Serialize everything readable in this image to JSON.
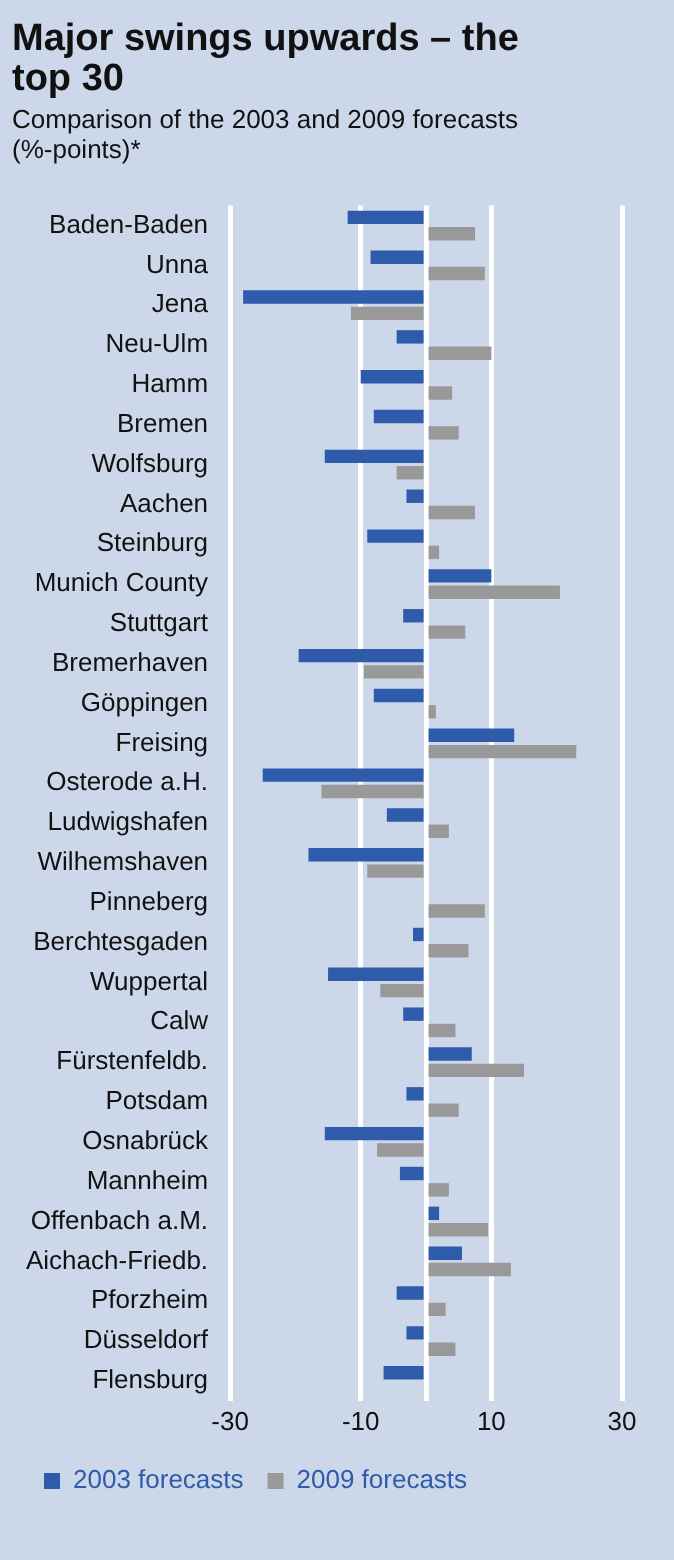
{
  "chart_data": {
    "type": "bar",
    "orientation": "horizontal",
    "title": "Major swings upwards – the top 30",
    "subtitle": "Comparison of the 2003 and 2009 forecasts (%-points)*",
    "categories": [
      "Baden-Baden",
      "Unna",
      "Jena",
      "Neu-Ulm",
      "Hamm",
      "Bremen",
      "Wolfsburg",
      "Aachen",
      "Steinburg",
      "Munich County",
      "Stuttgart",
      "Bremerhaven",
      "Göppingen",
      "Freising",
      "Osterode a.H.",
      "Ludwigshafen",
      "Wilhemshaven",
      "Pinneberg",
      "Berchtesgaden",
      "Wuppertal",
      "Calw",
      "Fürstenfeldb.",
      "Potsdam",
      "Osnabrück",
      "Mannheim",
      "Offenbach a.M.",
      "Aichach-Friedb.",
      "Pforzheim",
      "Düsseldorf",
      "Flensburg"
    ],
    "series": [
      {
        "name": "2003 forecasts",
        "color": "#2e5caa",
        "values": [
          -12,
          -8.5,
          -28,
          -4.5,
          -10,
          -8,
          -15.5,
          -3,
          -9,
          10,
          -3.5,
          -19.5,
          -8,
          13.5,
          -25,
          -6,
          -18,
          null,
          -2,
          -15,
          -3.5,
          7,
          -3,
          -15.5,
          -4,
          2,
          5.5,
          -4.5,
          -3,
          -6.5
        ]
      },
      {
        "name": "2009 forecasts",
        "color": "#999999",
        "values": [
          7.5,
          9,
          -11.5,
          10,
          4,
          5,
          -4.5,
          7.5,
          2,
          20.5,
          6,
          -9.5,
          1.5,
          23,
          -16,
          3.5,
          -9,
          9,
          6.5,
          -7,
          4.5,
          15,
          5,
          -7.5,
          3.5,
          9.5,
          13,
          3,
          4.5,
          null
        ]
      }
    ],
    "xlim": [
      -30,
      30
    ],
    "xticks": [
      -30,
      -10,
      {
        "value": 0,
        "label": null
      },
      10,
      30
    ],
    "grid": "x",
    "legend": "bottom"
  }
}
